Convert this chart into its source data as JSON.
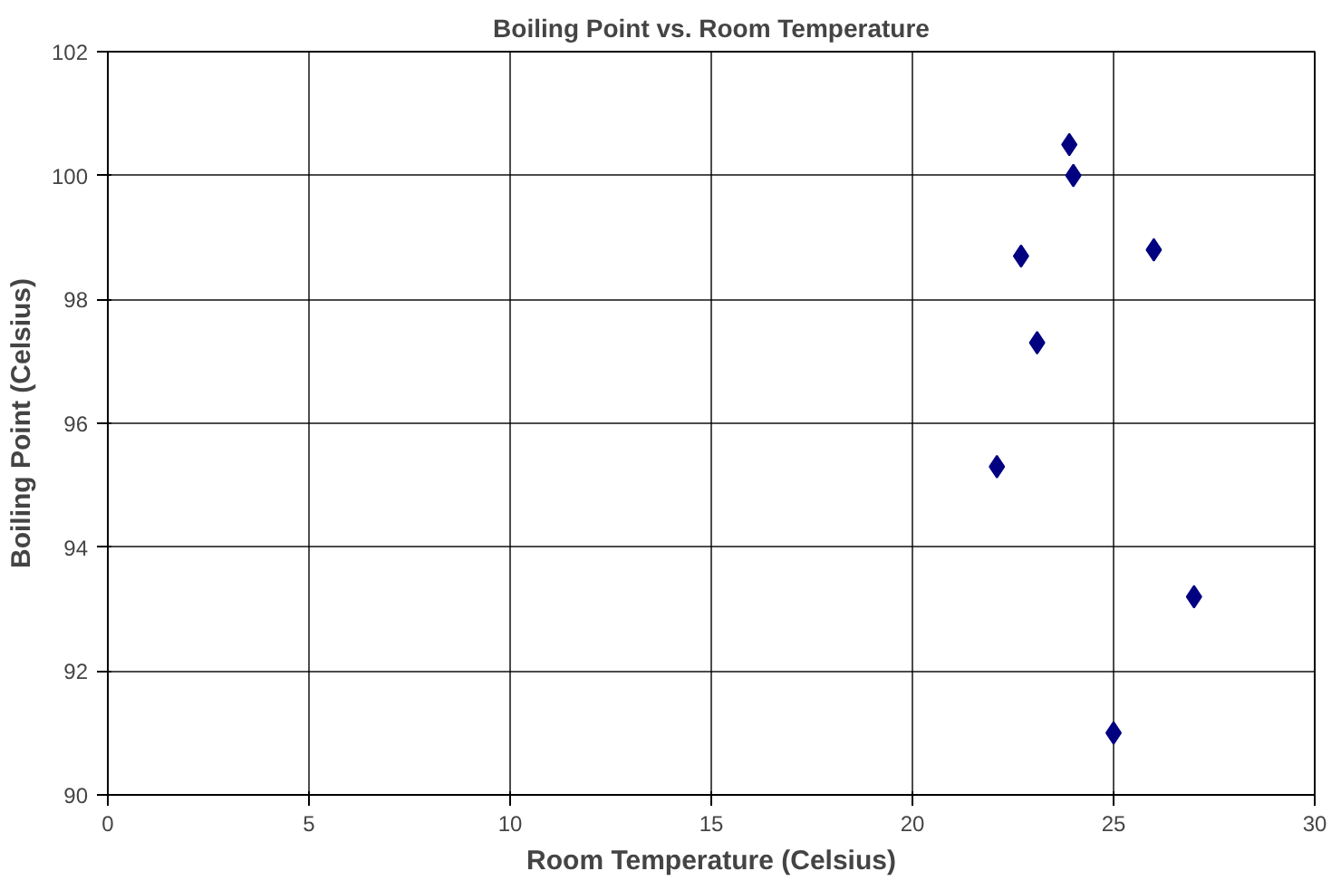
{
  "chart_data": {
    "type": "scatter",
    "title": "Boiling Point vs. Room Temperature",
    "xlabel": "Room Temperature (Celsius)",
    "ylabel": "Boiling Point (Celsius)",
    "x": [
      23.9,
      24.0,
      22.7,
      26.0,
      23.1,
      22.1,
      27.0,
      25.0
    ],
    "series": [
      {
        "color": "#000080",
        "values": [
          100.5,
          100.0,
          98.7,
          98.8,
          97.3,
          95.3,
          93.2,
          91.0
        ]
      }
    ],
    "xlim": [
      0,
      30
    ],
    "xticks": [
      0,
      5,
      10,
      15,
      20,
      25,
      30
    ],
    "ylim": [
      90,
      102
    ],
    "yticks": [
      90,
      92,
      94,
      96,
      98,
      100,
      102
    ],
    "grid": true,
    "marker": "diamond"
  }
}
